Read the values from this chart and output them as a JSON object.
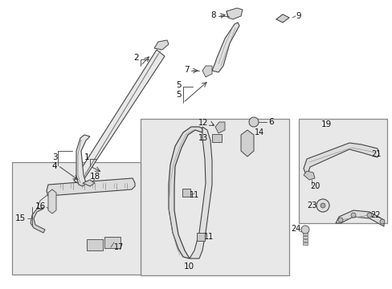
{
  "background_color": "#ffffff",
  "fig_width": 4.89,
  "fig_height": 3.6,
  "dpi": 100,
  "box_color": "#e8e8e8",
  "box_edge": "#888888",
  "part_fill": "#e0e0e0",
  "part_edge": "#444444",
  "label_color": "#111111",
  "line_color": "#555555"
}
